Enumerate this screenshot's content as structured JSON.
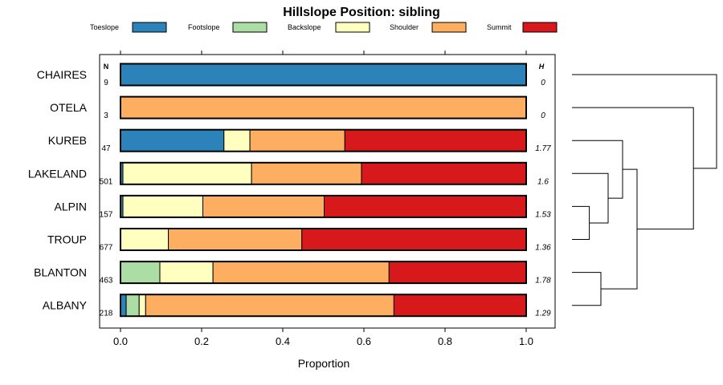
{
  "chart_data": {
    "type": "bar",
    "stacked": true,
    "orientation": "horizontal",
    "title": "Hillslope Position: sibling",
    "xlabel": "Proportion",
    "xlim": [
      0,
      1
    ],
    "x_ticks": [
      "0.0",
      "0.2",
      "0.4",
      "0.6",
      "0.8",
      "1.0"
    ],
    "x_tick_values": [
      0,
      0.2,
      0.4,
      0.6,
      0.8,
      1.0
    ],
    "n_header": "N",
    "h_header": "H",
    "legend": [
      {
        "name": "Toeslope",
        "color": "#2b83ba"
      },
      {
        "name": "Footslope",
        "color": "#abdda4"
      },
      {
        "name": "Backslope",
        "color": "#ffffbf"
      },
      {
        "name": "Shoulder",
        "color": "#fdae61"
      },
      {
        "name": "Summit",
        "color": "#d7191c"
      }
    ],
    "rows": [
      {
        "name": "CHAIRES",
        "n": "9",
        "h": "0",
        "values": [
          1.0,
          0,
          0,
          0,
          0
        ]
      },
      {
        "name": "OTELA",
        "n": "3",
        "h": "0",
        "values": [
          0,
          0,
          0,
          1.0,
          0
        ]
      },
      {
        "name": "KUREB",
        "n": "47",
        "h": "1.77",
        "values": [
          0.255,
          0,
          0.064,
          0.234,
          0.447
        ]
      },
      {
        "name": "LAKELAND",
        "n": "501",
        "h": "1.6",
        "values": [
          0.006,
          0,
          0.317,
          0.271,
          0.406
        ]
      },
      {
        "name": "ALPIN",
        "n": "157",
        "h": "1.53",
        "values": [
          0.006,
          0,
          0.197,
          0.299,
          0.498
        ]
      },
      {
        "name": "TROUP",
        "n": "677",
        "h": "1.36",
        "values": [
          0,
          0,
          0.118,
          0.329,
          0.553
        ]
      },
      {
        "name": "BLANTON",
        "n": "463",
        "h": "1.78",
        "values": [
          0,
          0.097,
          0.131,
          0.434,
          0.338
        ]
      },
      {
        "name": "ALBANY",
        "n": "218",
        "h": "1.29",
        "values": [
          0.014,
          0.032,
          0.016,
          0.612,
          0.326
        ]
      }
    ],
    "dendrogram": {
      "merges": [
        {
          "a": "ALPIN",
          "b": "TROUP",
          "height": 0.12
        },
        {
          "a": "BLANTON",
          "b": "ALBANY",
          "height": 0.2
        },
        {
          "a": "LAKELAND",
          "b": "ALPIN+TROUP",
          "height": 0.25
        },
        {
          "a": "KUREB",
          "b": "LAKELAND+ALPIN+TROUP",
          "height": 0.35
        },
        {
          "a": "KUREB+LAKELAND+ALPIN+TROUP",
          "b": "BLANTON+ALBANY",
          "height": 0.45
        },
        {
          "a": "OTELA",
          "b": "KUREB+LAKELAND+ALPIN+TROUP+BLANTON+ALBANY",
          "height": 0.84
        },
        {
          "a": "CHAIRES",
          "b": "OTELA+KUREB+LAKELAND+ALPIN+TROUP+BLANTON+ALBANY",
          "height": 1.0
        }
      ]
    }
  }
}
